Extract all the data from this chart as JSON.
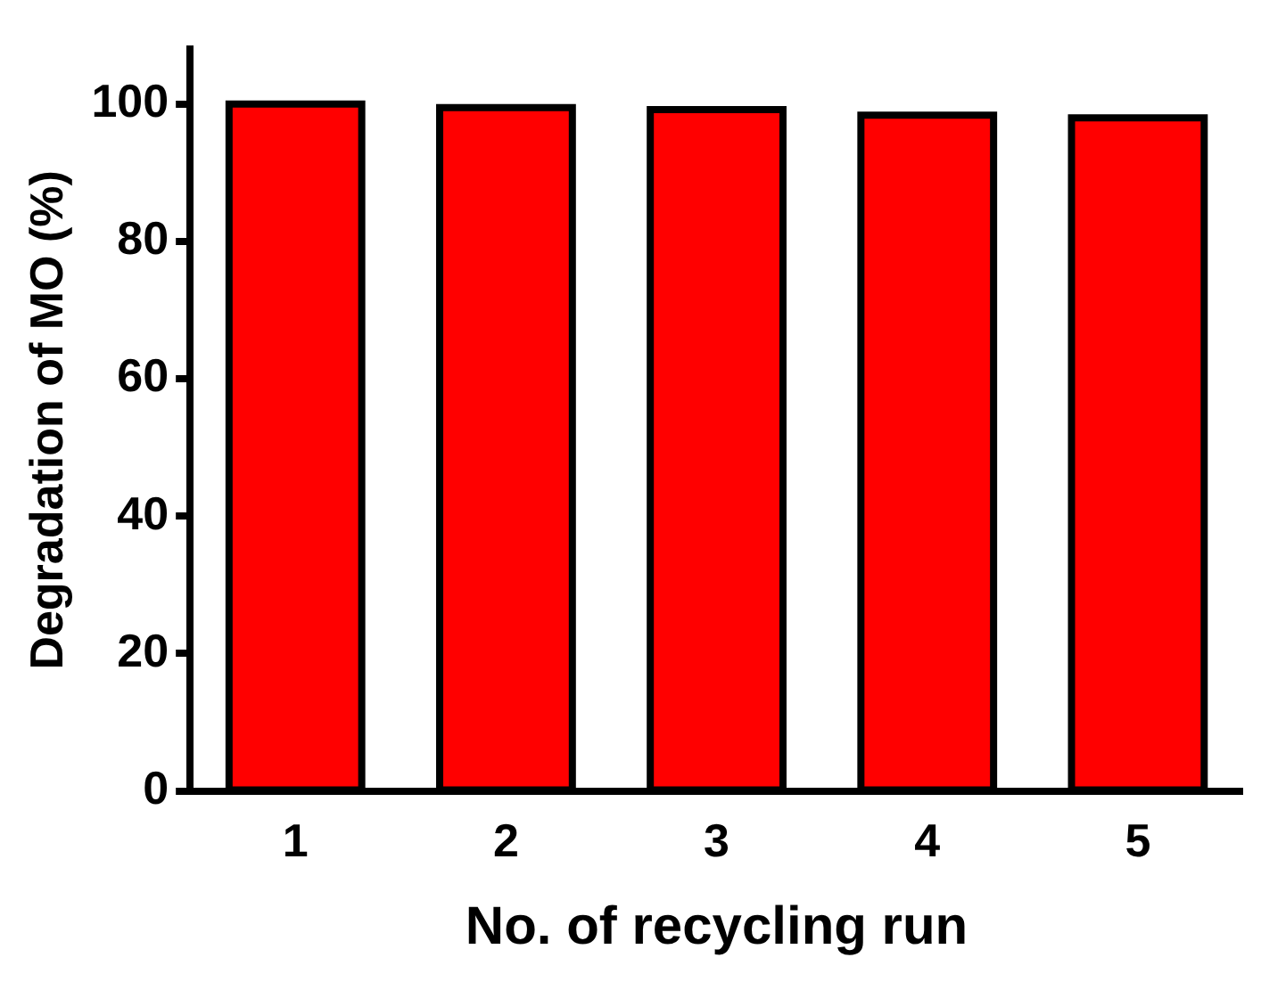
{
  "chart_data": {
    "type": "bar",
    "xlabel": "No. of recycling run",
    "ylabel": "Degradation of MO (%)",
    "categories": [
      "1",
      "2",
      "3",
      "4",
      "5"
    ],
    "series": [
      {
        "color": "#ff0000",
        "values": [
          100,
          99.5,
          99.2,
          98.4,
          98.0
        ]
      }
    ],
    "ylim": [
      0,
      108
    ],
    "yticks": [
      0,
      20,
      40,
      60,
      80,
      100
    ],
    "grid": false,
    "legend": false
  }
}
